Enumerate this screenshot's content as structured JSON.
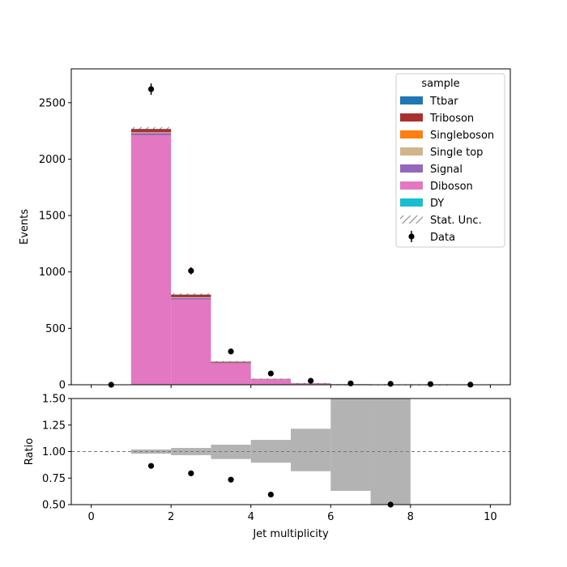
{
  "chart_data": [
    {
      "type": "bar",
      "subtype": "stacked-histogram",
      "xlabel": "",
      "ylabel": "Events",
      "xlim": [
        -0.5,
        10.5
      ],
      "ylim": [
        0,
        2800
      ],
      "xticks": [
        0,
        2,
        4,
        6,
        8,
        10
      ],
      "yticks": [
        0,
        500,
        1000,
        1500,
        2000,
        2500
      ],
      "bin_edges": [
        0,
        1,
        2,
        3,
        4,
        5,
        6,
        7,
        8,
        9,
        10
      ],
      "legend": {
        "title": "sample",
        "placement": "top-right",
        "entries": [
          "Ttbar",
          "Triboson",
          "Singleboson",
          "Single top",
          "Signal",
          "Diboson",
          "DY",
          "Stat. Unc.",
          "Data"
        ]
      },
      "series": [
        {
          "name": "Diboson",
          "color": "#e377c2",
          "values": [
            0,
            2210,
            755,
            187,
            45,
            12,
            4,
            1.5,
            0.5,
            0
          ]
        },
        {
          "name": "Signal",
          "color": "#9467bd",
          "values": [
            0,
            20,
            15,
            6,
            2,
            0.6,
            0.2,
            0,
            0,
            0
          ]
        },
        {
          "name": "Single top",
          "color": "#d2b48c",
          "values": [
            0,
            5,
            4,
            2,
            1,
            0.3,
            0.1,
            0,
            0,
            0
          ]
        },
        {
          "name": "Singleboson",
          "color": "#ff7f0e",
          "values": [
            0,
            3,
            2,
            1,
            0.3,
            0.1,
            0,
            0,
            0,
            0
          ]
        },
        {
          "name": "Triboson",
          "color": "#aa2f2f",
          "values": [
            0,
            28,
            22,
            8,
            3,
            1,
            0.4,
            0.1,
            0,
            0
          ]
        },
        {
          "name": "Ttbar",
          "color": "#1f77b4",
          "values": [
            0,
            2,
            2,
            1,
            1,
            0.5,
            0.2,
            0.1,
            0,
            0
          ]
        },
        {
          "name": "DY",
          "color": "#17becf",
          "values": [
            0,
            0,
            0,
            0,
            0,
            0,
            0,
            0,
            0,
            0
          ]
        }
      ],
      "data": {
        "name": "Data",
        "x": [
          0.5,
          1.5,
          2.5,
          3.5,
          4.5,
          5.5,
          6.5,
          7.5,
          8.5,
          9.5
        ],
        "y": [
          0,
          2620,
          1010,
          295,
          100,
          35,
          12,
          8,
          6,
          1
        ],
        "yerr": [
          0,
          51,
          32,
          17,
          10,
          6,
          3.5,
          2.8,
          2.4,
          1
        ]
      }
    },
    {
      "type": "bar",
      "subtype": "ratio-panel",
      "xlabel": "Jet multiplicity",
      "ylabel": "Ratio",
      "xlim": [
        -0.5,
        10.5
      ],
      "ylim": [
        0.5,
        1.5
      ],
      "xticks": [
        0,
        2,
        4,
        6,
        8,
        10
      ],
      "yticks": [
        "0.50",
        "0.75",
        "1.00",
        "1.25",
        "1.50"
      ],
      "reference_line": 1.0,
      "uncertainty_band": {
        "color": "#b3b3b3",
        "bins": [
          {
            "x0": 1,
            "x1": 2,
            "lo": 0.98,
            "hi": 1.02
          },
          {
            "x0": 2,
            "x1": 3,
            "lo": 0.966,
            "hi": 1.034
          },
          {
            "x0": 3,
            "x1": 4,
            "lo": 0.93,
            "hi": 1.065
          },
          {
            "x0": 4,
            "x1": 5,
            "lo": 0.895,
            "hi": 1.11
          },
          {
            "x0": 5,
            "x1": 6,
            "lo": 0.815,
            "hi": 1.215
          },
          {
            "x0": 6,
            "x1": 7,
            "lo": 0.63,
            "hi": 1.5
          },
          {
            "x0": 7,
            "x1": 8,
            "lo": 0.5,
            "hi": 1.5
          }
        ]
      },
      "points": {
        "x": [
          1.5,
          2.5,
          3.5,
          4.5,
          7.5
        ],
        "y": [
          0.865,
          0.795,
          0.735,
          0.595,
          0.5
        ]
      }
    }
  ]
}
